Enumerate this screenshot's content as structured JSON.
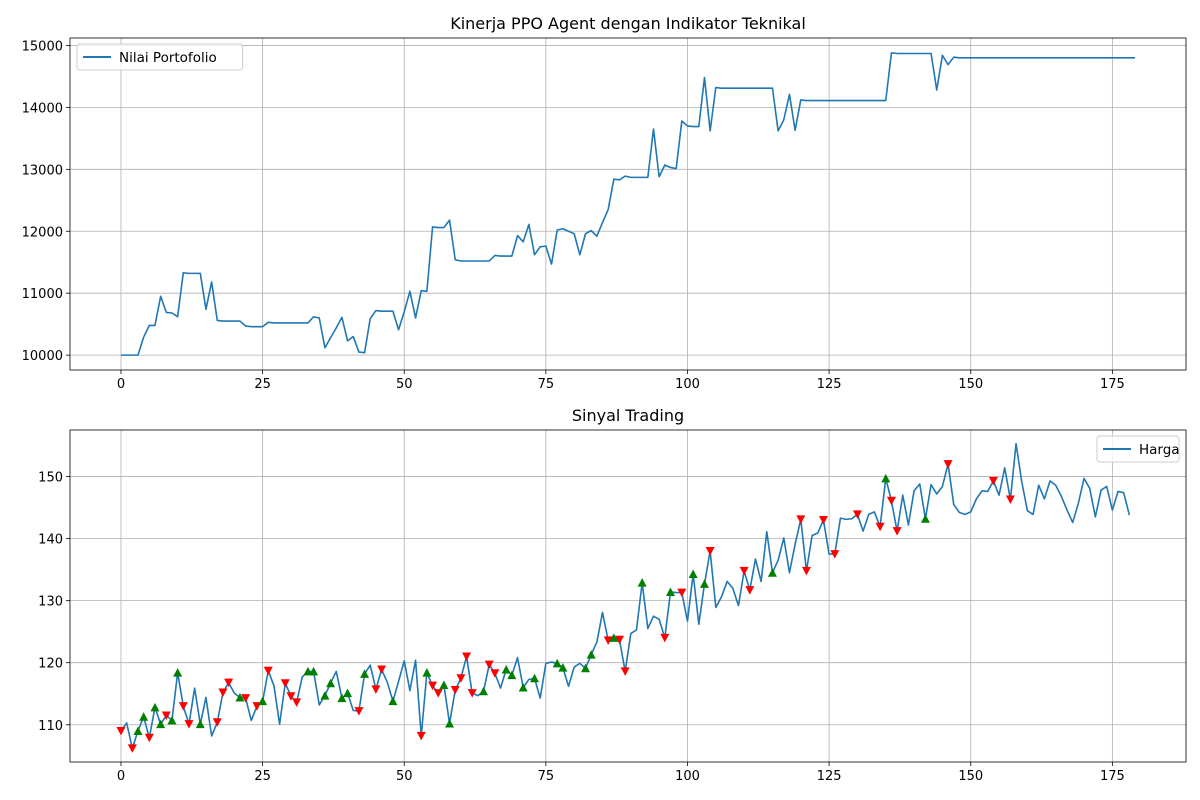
{
  "chart_data": [
    {
      "type": "line",
      "title": "Kinerja PPO Agent dengan Indikator Teknikal",
      "xlabel": "",
      "ylabel": "",
      "xlim": [
        -9,
        188
      ],
      "ylim": [
        9760,
        15120
      ],
      "xticks": [
        0,
        25,
        50,
        75,
        100,
        125,
        150,
        175
      ],
      "yticks": [
        10000,
        11000,
        12000,
        13000,
        14000,
        15000
      ],
      "grid": true,
      "legend": "top-left",
      "colors": {
        "line": "#1f77b4"
      },
      "series": [
        {
          "name": "Nilai Portofolio",
          "values": [
            10000,
            10000,
            10000,
            10000,
            10290,
            10480,
            10480,
            10950,
            10690,
            10680,
            10620,
            11330,
            11320,
            11320,
            11320,
            10740,
            11180,
            10560,
            10550,
            10550,
            10550,
            10550,
            10470,
            10460,
            10460,
            10460,
            10530,
            10520,
            10520,
            10520,
            10520,
            10520,
            10520,
            10520,
            10620,
            10600,
            10120,
            10280,
            10440,
            10610,
            10230,
            10300,
            10050,
            10040,
            10590,
            10720,
            10710,
            10710,
            10710,
            10410,
            10700,
            11030,
            10600,
            11040,
            11030,
            12070,
            12060,
            12060,
            12180,
            11540,
            11520,
            11520,
            11520,
            11520,
            11520,
            11520,
            11610,
            11600,
            11600,
            11600,
            11930,
            11830,
            12110,
            11620,
            11750,
            11760,
            11470,
            12020,
            12040,
            12000,
            11960,
            11620,
            11960,
            12010,
            11920,
            12140,
            12350,
            12840,
            12830,
            12890,
            12870,
            12870,
            12870,
            12870,
            13650,
            12880,
            13070,
            13030,
            13010,
            13780,
            13700,
            13690,
            13690,
            14480,
            13620,
            14320,
            14310,
            14310,
            14310,
            14310,
            14310,
            14310,
            14310,
            14310,
            14310,
            14310,
            13620,
            13800,
            14210,
            13630,
            14120,
            14110,
            14110,
            14110,
            14110,
            14110,
            14110,
            14110,
            14110,
            14110,
            14110,
            14110,
            14110,
            14110,
            14110,
            14110,
            14880,
            14870,
            14870,
            14870,
            14870,
            14870,
            14870,
            14870,
            14280,
            14840,
            14690,
            14810,
            14800,
            14800,
            14800,
            14800,
            14800,
            14800,
            14800,
            14800,
            14800,
            14800,
            14800,
            14800,
            14800,
            14800,
            14800,
            14800,
            14800,
            14800,
            14800,
            14800,
            14800,
            14800,
            14800,
            14800,
            14800,
            14800,
            14800,
            14800,
            14800,
            14800,
            14800,
            14800
          ]
        }
      ]
    },
    {
      "type": "line",
      "title": "Sinyal Trading",
      "xlabel": "",
      "ylabel": "",
      "xlim": [
        -9,
        188
      ],
      "ylim": [
        104,
        157.5
      ],
      "xticks": [
        0,
        25,
        50,
        75,
        100,
        125,
        150,
        175
      ],
      "yticks": [
        110,
        120,
        130,
        140,
        150
      ],
      "grid": true,
      "legend": "top-right",
      "colors": {
        "line": "#1f77b4",
        "buy": "#008000",
        "sell": "#ff0000"
      },
      "series": [
        {
          "name": "Harga",
          "values": [
            109.0,
            110.3,
            106.2,
            109.0,
            111.3,
            107.9,
            112.8,
            110.1,
            111.5,
            110.7,
            118.4,
            113.0,
            110.1,
            115.9,
            110.1,
            114.4,
            108.2,
            110.4,
            115.2,
            116.8,
            115.1,
            114.4,
            114.3,
            110.7,
            113.0,
            113.8,
            118.7,
            116.3,
            110.1,
            116.7,
            114.6,
            113.6,
            117.7,
            118.6,
            118.6,
            113.2,
            114.7,
            116.7,
            118.6,
            114.3,
            115.1,
            112.3,
            112.2,
            118.2,
            119.6,
            115.7,
            118.9,
            116.9,
            113.8,
            117.0,
            120.3,
            115.5,
            120.4,
            108.2,
            118.4,
            116.3,
            115.1,
            116.4,
            110.2,
            115.6,
            117.5,
            121.0,
            115.1,
            114.7,
            115.4,
            119.7,
            118.3,
            115.9,
            118.9,
            118.0,
            120.8,
            116.0,
            117.3,
            117.5,
            114.3,
            119.9,
            120.1,
            119.9,
            119.2,
            116.2,
            119.3,
            119.9,
            119.1,
            121.3,
            123.3,
            128.1,
            123.6,
            124.0,
            123.7,
            118.6,
            124.7,
            125.3,
            132.9,
            125.5,
            127.5,
            127.0,
            124.0,
            131.4,
            131.3,
            131.3,
            126.7,
            134.3,
            126.2,
            132.7,
            138.0,
            128.9,
            130.6,
            133.1,
            132.0,
            129.2,
            134.8,
            131.7,
            136.7,
            133.1,
            141.1,
            134.5,
            136.5,
            140.1,
            134.5,
            139.1,
            143.1,
            134.8,
            140.5,
            140.9,
            143.0,
            137.5,
            137.5,
            143.3,
            143.1,
            143.2,
            143.9,
            141.2,
            143.9,
            144.3,
            141.9,
            149.7,
            146.1,
            141.2,
            147.0,
            142.2,
            147.7,
            148.8,
            143.2,
            148.7,
            147.2,
            148.4,
            152.0,
            145.5,
            144.2,
            143.9,
            144.3,
            146.4,
            147.7,
            147.6,
            149.3,
            147.0,
            151.4,
            146.3,
            155.3,
            149.2,
            144.5,
            143.9,
            148.6,
            146.4,
            149.3,
            148.6,
            146.8,
            144.6,
            142.6,
            145.7,
            149.7,
            148.1,
            143.5,
            147.8,
            148.4,
            144.6,
            147.6,
            147.4,
            143.8
          ]
        }
      ],
      "buy_signals": [
        3,
        4,
        6,
        7,
        9,
        10,
        14,
        21,
        25,
        33,
        34,
        36,
        37,
        39,
        40,
        43,
        48,
        54,
        57,
        58,
        64,
        68,
        69,
        71,
        73,
        77,
        78,
        82,
        83,
        87,
        92,
        97,
        101,
        103,
        115,
        135,
        142
      ],
      "sell_signals": [
        0,
        2,
        5,
        8,
        11,
        12,
        17,
        18,
        19,
        22,
        24,
        26,
        29,
        30,
        31,
        42,
        45,
        46,
        53,
        55,
        56,
        59,
        60,
        61,
        62,
        65,
        66,
        86,
        88,
        89,
        96,
        99,
        104,
        110,
        111,
        120,
        121,
        124,
        126,
        130,
        134,
        136,
        137,
        146,
        154,
        157
      ]
    }
  ]
}
